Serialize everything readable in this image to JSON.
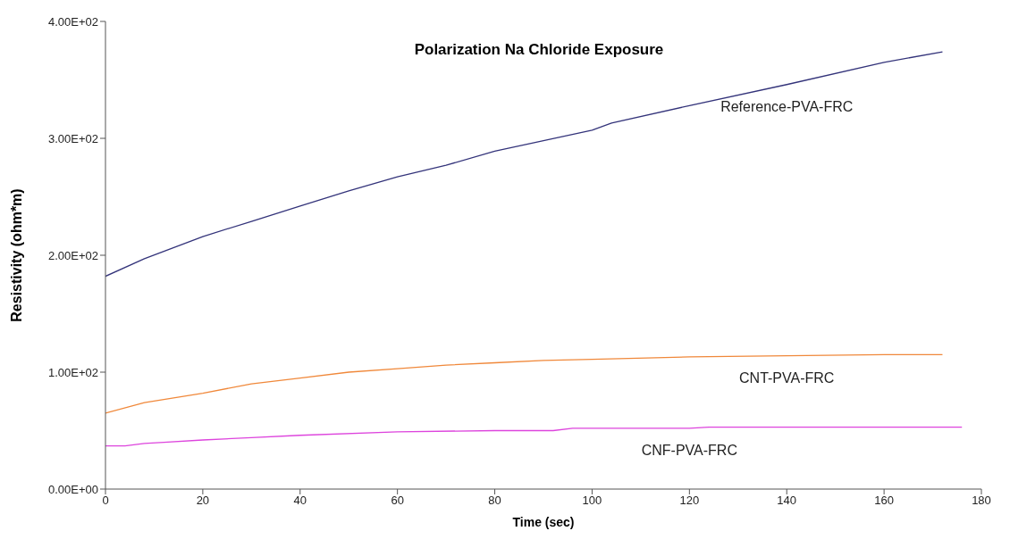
{
  "chart_data": {
    "type": "line",
    "title": "Polarization Na Chloride Exposure",
    "xlabel": "Time (sec)",
    "ylabel": "Resistivity (ohm*m)",
    "xlim": [
      0,
      180
    ],
    "xticks": [
      0,
      20,
      40,
      60,
      80,
      100,
      120,
      140,
      160,
      180
    ],
    "ylim": [
      0,
      400
    ],
    "yticks": [
      {
        "value": 0,
        "label": "0.00E+00"
      },
      {
        "value": 100,
        "label": "1.00E+02"
      },
      {
        "value": 200,
        "label": "2.00E+02"
      },
      {
        "value": 300,
        "label": "3.00E+02"
      },
      {
        "value": 400,
        "label": "4.00E+02"
      }
    ],
    "grid": false,
    "legend": false,
    "marker": "none",
    "line_style": "solid",
    "series": [
      {
        "name": "Reference-PVA-FRC",
        "color": "#33337a",
        "x": [
          0,
          8,
          20,
          30,
          40,
          50,
          60,
          70,
          80,
          100,
          104,
          120,
          140,
          160,
          172
        ],
        "values": [
          182,
          197,
          216,
          229,
          242,
          255,
          267,
          277,
          289,
          307,
          313,
          328,
          346,
          365,
          374
        ]
      },
      {
        "name": "CNT-PVA-FRC",
        "color": "#f0883a",
        "x": [
          0,
          8,
          20,
          30,
          40,
          50,
          60,
          70,
          80,
          90,
          100,
          120,
          140,
          160,
          172
        ],
        "values": [
          65,
          74,
          82,
          90,
          95,
          100,
          103,
          106,
          108,
          110,
          111,
          113,
          114,
          115,
          115
        ]
      },
      {
        "name": "CNF-PVA-FRC",
        "color": "#dd44dd",
        "x": [
          0,
          4,
          8,
          12,
          20,
          30,
          40,
          60,
          80,
          92,
          96,
          120,
          124,
          176
        ],
        "values": [
          37,
          37,
          39,
          40,
          42,
          44,
          46,
          49,
          50,
          50,
          52,
          52,
          53,
          53
        ]
      }
    ]
  }
}
